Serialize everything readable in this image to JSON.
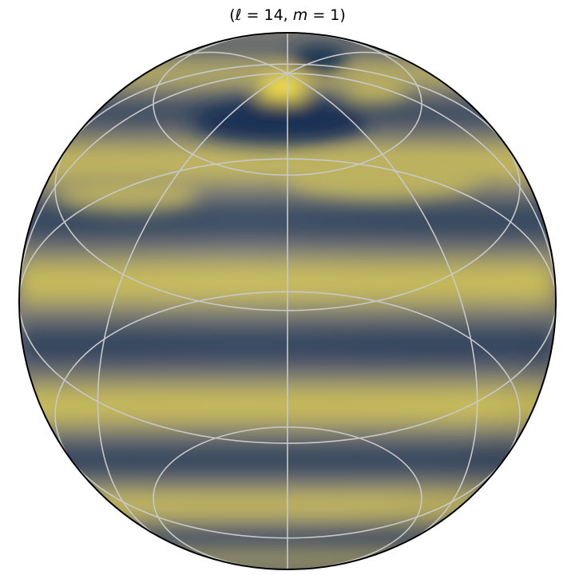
{
  "figure": {
    "title": {
      "open": "(",
      "l_symbol": "ℓ",
      "eq1": " = 14, ",
      "m_symbol": "m",
      "eq2": " = 1)"
    },
    "harmonic": {
      "l": 14,
      "m": 1
    },
    "colormap": {
      "name": "cividis",
      "low": "#00204d",
      "mid": "#7c7b78",
      "high": "#ffea46"
    },
    "graticule": {
      "parallels_deg": [
        -60,
        -30,
        0,
        30,
        60
      ],
      "meridians_count": 4,
      "color": "#c8c8c8"
    },
    "outline_color": "#000000"
  }
}
